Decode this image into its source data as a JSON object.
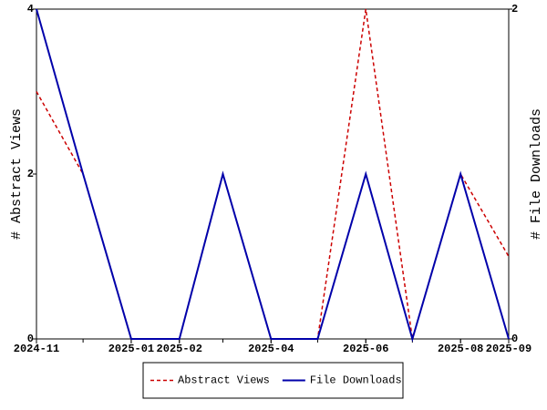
{
  "chart_data": {
    "type": "line",
    "x": [
      "2024-11",
      "2024-12",
      "2025-01",
      "2025-02",
      "2025-03",
      "2025-04",
      "2025-05",
      "2025-06",
      "2025-07",
      "2025-08",
      "2025-09"
    ],
    "xlim": [
      "2024-11",
      "2025-09"
    ],
    "xticks": [
      "2024-11",
      "2025-01",
      "2025-02",
      "2025-04",
      "2025-06",
      "2025-08",
      "2025-09"
    ],
    "ylabel": "# Abstract Views",
    "y2label": "# File Downloads",
    "ylim": [
      0,
      4
    ],
    "yticks": [
      0,
      2,
      4
    ],
    "y2lim": [
      0,
      2
    ],
    "y2ticks": [
      0,
      2
    ],
    "legend": "bottom",
    "series": [
      {
        "name": "Abstract Views",
        "color": "#cc0000",
        "dashed": true,
        "values": [
          3,
          2,
          0,
          0,
          2,
          0,
          0,
          4,
          0,
          2,
          1
        ]
      },
      {
        "name": "File Downloads",
        "color": "#0000aa",
        "axis": "y2",
        "values": [
          2,
          1,
          0,
          0,
          1,
          0,
          0,
          1,
          0,
          1,
          0
        ]
      }
    ]
  }
}
